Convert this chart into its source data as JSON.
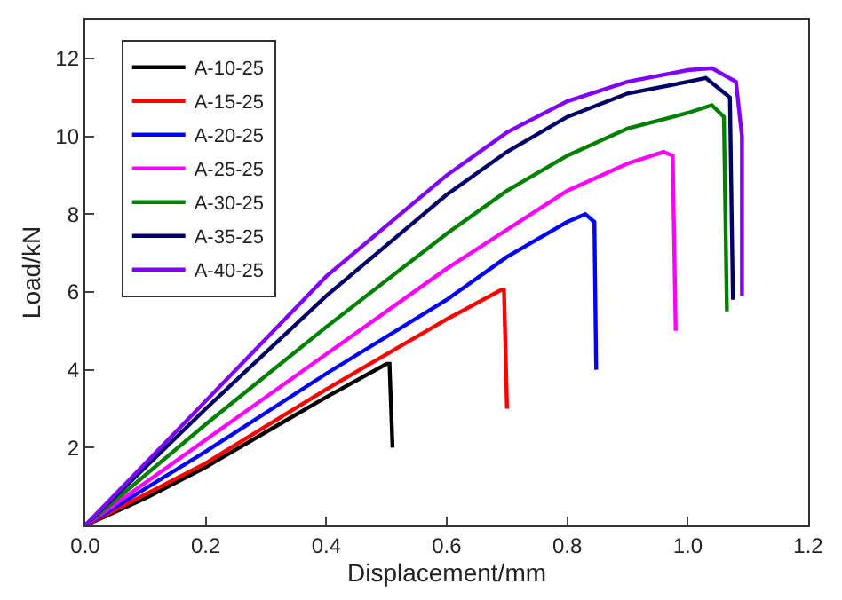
{
  "chart_data": {
    "type": "line",
    "xlabel": "Displacement/mm",
    "ylabel": "Load/kN",
    "xlim": [
      0,
      1.2
    ],
    "ylim": [
      0,
      13
    ],
    "xticks": [
      {
        "value": 0,
        "label": "0.0"
      },
      {
        "value": 0.2,
        "label": "0.2"
      },
      {
        "value": 0.4,
        "label": "0.4"
      },
      {
        "value": 0.6,
        "label": "0.6"
      },
      {
        "value": 0.8,
        "label": "0.8"
      },
      {
        "value": 1.0,
        "label": "1.0"
      },
      {
        "value": 1.2,
        "label": "1.2"
      }
    ],
    "yticks": [
      2,
      4,
      6,
      8,
      10,
      12
    ],
    "legend": "top left",
    "marker": "none",
    "line_style": "solid",
    "series": [
      {
        "name": "A-10-25",
        "color": "#000000",
        "x": [
          0,
          0.1,
          0.2,
          0.3,
          0.4,
          0.5,
          0.505,
          0.51
        ],
        "values": [
          0,
          0.7,
          1.5,
          2.4,
          3.3,
          4.15,
          4.15,
          2.0
        ]
      },
      {
        "name": "A-15-25",
        "color": "#ff0000",
        "x": [
          0,
          0.2,
          0.4,
          0.5,
          0.6,
          0.69,
          0.695,
          0.7
        ],
        "values": [
          0,
          1.6,
          3.5,
          4.4,
          5.3,
          6.05,
          6.05,
          3.0
        ]
      },
      {
        "name": "A-20-25",
        "color": "#0000ff",
        "x": [
          0,
          0.2,
          0.4,
          0.6,
          0.7,
          0.8,
          0.83,
          0.845,
          0.848
        ],
        "values": [
          0,
          1.9,
          3.9,
          5.8,
          6.9,
          7.8,
          8.0,
          7.8,
          4.0
        ]
      },
      {
        "name": "A-25-25",
        "color": "#ff00ff",
        "x": [
          0,
          0.2,
          0.4,
          0.6,
          0.7,
          0.8,
          0.9,
          0.96,
          0.975,
          0.98
        ],
        "values": [
          0,
          2.2,
          4.4,
          6.6,
          7.6,
          8.6,
          9.3,
          9.6,
          9.5,
          5.0
        ]
      },
      {
        "name": "A-30-25",
        "color": "#008000",
        "x": [
          0,
          0.2,
          0.4,
          0.6,
          0.7,
          0.8,
          0.9,
          1.0,
          1.04,
          1.06,
          1.065
        ],
        "values": [
          0,
          2.6,
          5.1,
          7.5,
          8.6,
          9.5,
          10.2,
          10.6,
          10.8,
          10.5,
          5.5
        ]
      },
      {
        "name": "A-35-25",
        "color": "#000066",
        "x": [
          0,
          0.2,
          0.4,
          0.6,
          0.7,
          0.8,
          0.9,
          1.0,
          1.03,
          1.07,
          1.075
        ],
        "values": [
          0,
          3.0,
          5.9,
          8.5,
          9.6,
          10.5,
          11.1,
          11.4,
          11.5,
          11.0,
          5.8
        ]
      },
      {
        "name": "A-40-25",
        "color": "#8000ff",
        "x": [
          0,
          0.2,
          0.4,
          0.6,
          0.7,
          0.8,
          0.9,
          1.0,
          1.04,
          1.08,
          1.09,
          1.09
        ],
        "values": [
          0,
          3.2,
          6.4,
          9.0,
          10.1,
          10.9,
          11.4,
          11.7,
          11.75,
          11.4,
          10.0,
          5.9
        ]
      }
    ]
  }
}
